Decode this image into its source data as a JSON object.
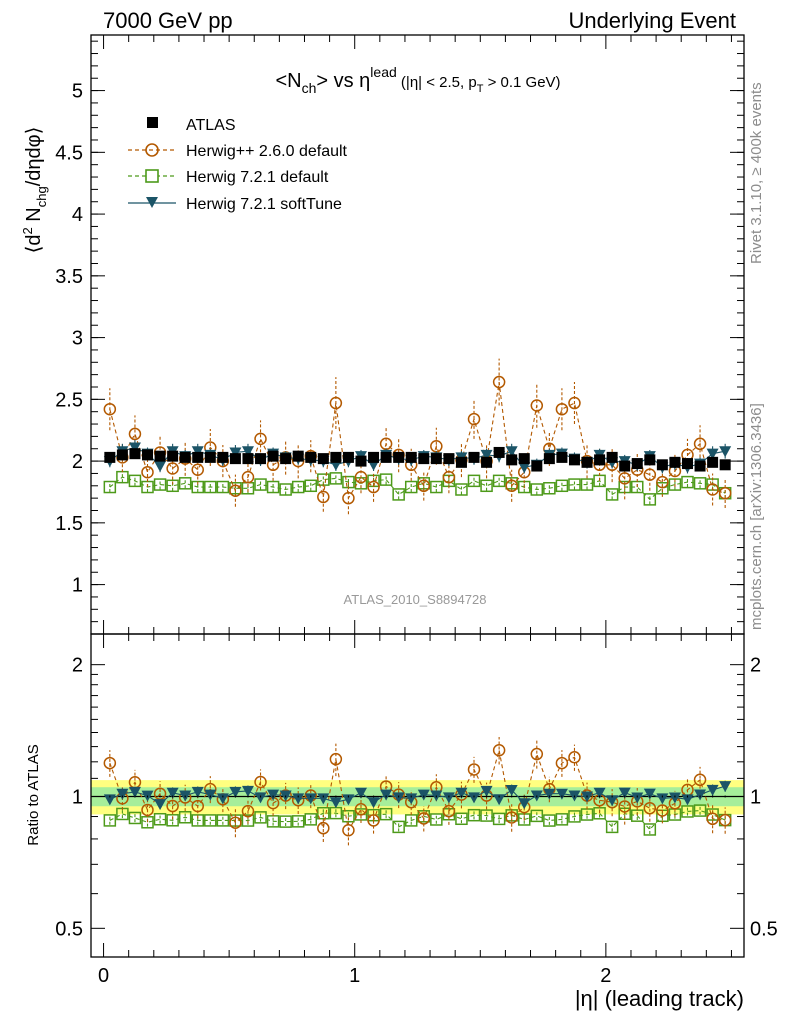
{
  "header": {
    "left": "7000 GeV pp",
    "right": "Underlying Event"
  },
  "side_labels": {
    "rivet": "Rivet 3.1.10, ≥ 400k events",
    "mcplots": "mcplots.cern.ch [arXiv:1306.3436]"
  },
  "analysis_id": "ATLAS_2010_S8894728",
  "colors": {
    "atlas": "#000000",
    "herwig_pp": "#b35900",
    "herwig721": "#4d9a1a",
    "herwig_soft": "#1b5467",
    "band_inner": "#a6ee9a",
    "band_outer": "#ffff80"
  },
  "chart_data": [
    {
      "type": "scatter",
      "panel": "main",
      "title_parts": {
        "a": "<N",
        "a_sub": "ch",
        "b": "> vs η",
        "b_sup": "lead",
        "c": " (|η| < 2.5, p",
        "c_sub": "T",
        "d": " > 0.1 GeV)"
      },
      "ylabel_parts": {
        "a": "⟨d",
        "a_sup": "2",
        "b": " N",
        "b_sub": "chg",
        "c": "/dηdφ⟩"
      },
      "ylim": [
        0.6,
        5.45
      ],
      "xlim": [
        -0.05,
        2.55
      ],
      "ytick_labels": [
        "1",
        "1.5",
        "2",
        "2.5",
        "3",
        "3.5",
        "4",
        "4.5",
        "5"
      ],
      "legend_position": "top-left",
      "x": [
        0.025,
        0.075,
        0.125,
        0.175,
        0.225,
        0.275,
        0.325,
        0.375,
        0.425,
        0.475,
        0.525,
        0.575,
        0.625,
        0.675,
        0.725,
        0.775,
        0.825,
        0.875,
        0.925,
        0.975,
        1.025,
        1.075,
        1.125,
        1.175,
        1.225,
        1.275,
        1.325,
        1.375,
        1.425,
        1.475,
        1.525,
        1.575,
        1.625,
        1.675,
        1.725,
        1.775,
        1.825,
        1.875,
        1.925,
        1.975,
        2.025,
        2.075,
        2.125,
        2.175,
        2.225,
        2.275,
        2.325,
        2.375,
        2.425,
        2.475
      ],
      "series": [
        {
          "name": "ATLAS",
          "marker": "filled-square",
          "values": [
            2.03,
            2.05,
            2.06,
            2.05,
            2.04,
            2.04,
            2.03,
            2.03,
            2.03,
            2.03,
            2.02,
            2.02,
            2.02,
            2.04,
            2.02,
            2.04,
            2.03,
            2.02,
            2.03,
            2.03,
            2.0,
            2.03,
            2.03,
            2.03,
            2.03,
            2.02,
            2.02,
            2.02,
            1.99,
            2.03,
            1.99,
            2.07,
            2.01,
            2.02,
            1.96,
            2.02,
            2.03,
            2.01,
            1.99,
            2.01,
            2.03,
            1.96,
            1.98,
            2.01,
            1.97,
            1.99,
            1.98,
            1.96,
            1.99,
            1.97
          ],
          "errors": [
            0.01,
            0.01,
            0.01,
            0.01,
            0.01,
            0.01,
            0.01,
            0.01,
            0.01,
            0.01,
            0.01,
            0.01,
            0.01,
            0.01,
            0.01,
            0.01,
            0.01,
            0.01,
            0.01,
            0.01,
            0.01,
            0.01,
            0.01,
            0.01,
            0.01,
            0.01,
            0.01,
            0.01,
            0.01,
            0.01,
            0.01,
            0.01,
            0.01,
            0.01,
            0.01,
            0.01,
            0.01,
            0.01,
            0.01,
            0.01,
            0.01,
            0.01,
            0.01,
            0.01,
            0.01,
            0.01,
            0.01,
            0.01,
            0.01,
            0.01
          ]
        },
        {
          "name": "Herwig++ 2.6.0 default",
          "marker": "open-circle",
          "line": "dashed",
          "values": [
            2.42,
            2.03,
            2.22,
            1.91,
            2.07,
            1.94,
            2.02,
            1.93,
            2.11,
            2.0,
            1.76,
            1.87,
            2.18,
            1.97,
            2.03,
            2.0,
            2.04,
            1.71,
            2.47,
            1.7,
            1.87,
            1.79,
            2.14,
            2.05,
            1.97,
            1.8,
            2.12,
            1.87,
            2.01,
            2.34,
            2.0,
            2.64,
            1.8,
            1.91,
            2.45,
            2.1,
            2.42,
            2.47,
            2.0,
            1.97,
            1.97,
            1.86,
            1.93,
            1.89,
            1.83,
            1.92,
            2.05,
            2.14,
            1.77,
            1.74
          ],
          "errors": [
            0.17,
            0.12,
            0.15,
            0.12,
            0.14,
            0.13,
            0.14,
            0.12,
            0.15,
            0.13,
            0.13,
            0.12,
            0.15,
            0.13,
            0.14,
            0.14,
            0.13,
            0.12,
            0.21,
            0.13,
            0.13,
            0.12,
            0.14,
            0.14,
            0.13,
            0.12,
            0.15,
            0.13,
            0.14,
            0.16,
            0.14,
            0.19,
            0.13,
            0.13,
            0.18,
            0.14,
            0.17,
            0.17,
            0.14,
            0.13,
            0.14,
            0.17,
            0.14,
            0.13,
            0.12,
            0.13,
            0.13,
            0.15,
            0.13,
            0.12
          ]
        },
        {
          "name": "Herwig 7.2.1 default",
          "marker": "open-square",
          "line": "dashed",
          "values": [
            1.79,
            1.87,
            1.84,
            1.79,
            1.81,
            1.8,
            1.82,
            1.79,
            1.79,
            1.79,
            1.78,
            1.78,
            1.81,
            1.79,
            1.77,
            1.79,
            1.8,
            1.85,
            1.86,
            1.83,
            1.82,
            1.84,
            1.85,
            1.73,
            1.79,
            1.82,
            1.79,
            1.84,
            1.77,
            1.84,
            1.8,
            1.84,
            1.82,
            1.79,
            1.77,
            1.78,
            1.8,
            1.81,
            1.81,
            1.84,
            1.73,
            1.79,
            1.79,
            1.69,
            1.78,
            1.81,
            1.83,
            1.82,
            1.81,
            1.74
          ],
          "errors": [
            0.04,
            0.04,
            0.04,
            0.04,
            0.04,
            0.04,
            0.04,
            0.04,
            0.04,
            0.04,
            0.04,
            0.04,
            0.04,
            0.04,
            0.04,
            0.04,
            0.04,
            0.04,
            0.04,
            0.04,
            0.04,
            0.04,
            0.04,
            0.04,
            0.04,
            0.04,
            0.04,
            0.04,
            0.04,
            0.04,
            0.04,
            0.04,
            0.04,
            0.04,
            0.04,
            0.04,
            0.04,
            0.04,
            0.04,
            0.04,
            0.04,
            0.04,
            0.04,
            0.04,
            0.04,
            0.04,
            0.04,
            0.04,
            0.04,
            0.04
          ]
        },
        {
          "name": "Herwig 7.2.1 softTune",
          "marker": "filled-triangle-down",
          "line": "solid",
          "values": [
            2.0,
            2.08,
            2.11,
            2.06,
            1.96,
            2.08,
            2.04,
            2.08,
            2.05,
            2.01,
            2.07,
            2.08,
            2.01,
            2.06,
            2.03,
            2.02,
            2.01,
            2.0,
            1.97,
            2.0,
            2.04,
            1.97,
            2.05,
            2.02,
            2.01,
            2.04,
            2.03,
            2.01,
            2.03,
            2.02,
            2.05,
            2.04,
            2.08,
            1.95,
            1.97,
            2.05,
            2.06,
            2.02,
            1.99,
            2.05,
            1.99,
            2.0,
            1.97,
            2.04,
            1.95,
            1.98,
            1.95,
            1.98,
            2.06,
            2.08
          ],
          "errors": [
            0.05,
            0.06,
            0.06,
            0.05,
            0.05,
            0.06,
            0.05,
            0.06,
            0.05,
            0.05,
            0.06,
            0.06,
            0.05,
            0.05,
            0.05,
            0.05,
            0.05,
            0.05,
            0.05,
            0.05,
            0.05,
            0.05,
            0.05,
            0.05,
            0.05,
            0.05,
            0.05,
            0.05,
            0.05,
            0.05,
            0.05,
            0.05,
            0.06,
            0.05,
            0.05,
            0.05,
            0.05,
            0.05,
            0.05,
            0.05,
            0.05,
            0.05,
            0.05,
            0.05,
            0.05,
            0.05,
            0.05,
            0.05,
            0.06,
            0.06
          ]
        }
      ]
    },
    {
      "type": "scatter",
      "panel": "ratio",
      "ylabel": "Ratio to ATLAS",
      "xlabel": "|η| (leading track)",
      "yscale": "log",
      "ylim": [
        0.43,
        2.35
      ],
      "ytick_labels": [
        "0.5",
        "1",
        "2"
      ],
      "ytick_values": [
        0.5,
        1,
        2
      ],
      "xtick_labels": [
        "0",
        "1",
        "2"
      ],
      "xtick_values": [
        0,
        1,
        2
      ],
      "band_inner": [
        0.95,
        1.05
      ],
      "band_outer": [
        0.91,
        1.09
      ]
    }
  ]
}
